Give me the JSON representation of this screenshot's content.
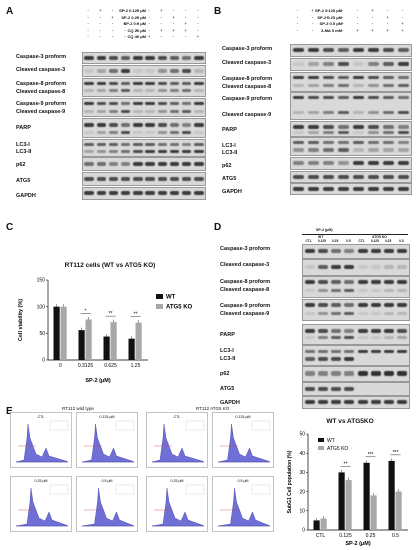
{
  "panels": {
    "A": "A",
    "B": "B",
    "C": "C",
    "D": "D",
    "E": "E"
  },
  "panelA": {
    "conditions": [
      {
        "label": "SP-2 0.125 μM",
        "signs": [
          "-",
          "+",
          "-",
          "-",
          "-",
          "-",
          "+",
          "-",
          "-",
          "-"
        ]
      },
      {
        "label": "SP-2 0.25 μM",
        "signs": [
          "-",
          "-",
          "+",
          "-",
          "-",
          "-",
          "-",
          "+",
          "-",
          "-"
        ]
      },
      {
        "label": "SP-2 0.5 μM",
        "signs": [
          "-",
          "-",
          "-",
          "+",
          "-",
          "-",
          "-",
          "-",
          "+",
          "-"
        ]
      },
      {
        "label": "CQ 20 μM",
        "signs": [
          "-",
          "-",
          "-",
          "-",
          "+",
          "-",
          "+",
          "+",
          "+",
          "-"
        ]
      },
      {
        "label": "CQ 40 μM",
        "signs": [
          "-",
          "-",
          "-",
          "-",
          "-",
          "+",
          "-",
          "-",
          "-",
          "+"
        ]
      }
    ],
    "blots": [
      {
        "labels": [
          "Caspase-3 proform"
        ]
      },
      {
        "labels": [
          "Cleaved caspase-3"
        ]
      },
      {
        "labels": [
          "Caspase-8 proform",
          "Cleaved caspase-8"
        ]
      },
      {
        "labels": [
          "Caspase-9 proform",
          "Cleaved caspase-9"
        ]
      },
      {
        "labels": [
          "PARP"
        ]
      },
      {
        "labels": [
          "LC3-I",
          "LC3-II"
        ]
      },
      {
        "labels": [
          "p62"
        ]
      },
      {
        "labels": [
          "ATG5"
        ]
      },
      {
        "labels": [
          "GAPDH"
        ]
      }
    ]
  },
  "panelB": {
    "conditions": [
      {
        "label": "SP-2 0.125 μM",
        "signs": [
          "-",
          "+",
          "-",
          "-",
          "-",
          "+",
          "-",
          "-"
        ]
      },
      {
        "label": "SP-2 0.25 μM",
        "signs": [
          "-",
          "-",
          "+",
          "-",
          "-",
          "-",
          "+",
          "-"
        ]
      },
      {
        "label": "SP-2 0.5 μM",
        "signs": [
          "-",
          "-",
          "-",
          "+",
          "-",
          "-",
          "-",
          "+"
        ]
      },
      {
        "label": "3-MA 5 mM",
        "signs": [
          "-",
          "-",
          "-",
          "-",
          "+",
          "+",
          "+",
          "+"
        ]
      }
    ],
    "blots": [
      {
        "labels": [
          "Caspase-3 proform"
        ]
      },
      {
        "labels": [
          "Cleaved caspase-3"
        ]
      },
      {
        "labels": [
          "Caspase-8 proform",
          "Cleaved caspase-8"
        ]
      },
      {
        "labels": [
          "Caspase-9 proform",
          "",
          "Cleaved caspase-9"
        ]
      },
      {
        "labels": [
          "PARP"
        ]
      },
      {
        "labels": [
          "LC3-I",
          "LC3-II"
        ]
      },
      {
        "labels": [
          "p62"
        ]
      },
      {
        "labels": [
          "ATG5"
        ]
      },
      {
        "labels": [
          "GAPDH"
        ]
      }
    ]
  },
  "panelC": {
    "title": "RT112 cells (WT vs ATG5 KO)",
    "ylabel": "Cell viability (%)",
    "xlabel": "SP-2 (μM)",
    "legend": [
      "WT",
      "ATG5 KO"
    ],
    "stars": [
      "*",
      "**",
      "**"
    ]
  },
  "panelD": {
    "header": "SP-2 (μM)",
    "group_wt": "WT",
    "group_ko": "ATG5 KO",
    "lanes": [
      "CTL",
      "0.125",
      "0.25",
      "0.5",
      "CTL",
      "0.125",
      "0.25",
      "0.5"
    ],
    "blots": [
      {
        "labels": [
          "Caspase-3 proform"
        ]
      },
      {
        "labels": [
          "Cleaved caspase-3"
        ]
      },
      {
        "labels": [
          "Caspase-8 proform",
          "Cleaved caspase-8"
        ]
      },
      {
        "labels": [
          "Caspase-9 proform",
          "Cleaved caspase-9"
        ]
      },
      {
        "labels": [
          "PARP"
        ]
      },
      {
        "labels": [
          "LC3-I",
          "LC3-II"
        ]
      },
      {
        "labels": [
          "p62"
        ]
      },
      {
        "labels": [
          "ATG5"
        ]
      },
      {
        "labels": [
          "GAPDH"
        ]
      }
    ]
  },
  "panelE": {
    "title_wt": "RT112 wild type",
    "title_ko": "RT112 ATG5 KO",
    "histograms": [
      {
        "label": "CTL"
      },
      {
        "label": "0.125 μM"
      },
      {
        "label": "0.25 μM"
      },
      {
        "label": "0.5 μM"
      },
      {
        "label": "CTL"
      },
      {
        "label": "0.125 μM"
      },
      {
        "label": "0.25 μM"
      },
      {
        "label": "0.5 μM"
      }
    ],
    "chart_title": "WT vs ATG5KO",
    "ylabel": "SubG1 Cell population (%)",
    "xlabel": "SP-2 (μM)",
    "legend": [
      "WT",
      "ATG5 KO"
    ],
    "stars": [
      "**",
      "***",
      "***"
    ]
  },
  "chart_data": [
    {
      "type": "bar",
      "title": "RT112 cells (WT vs ATG5 KO)",
      "xlabel": "SP-2 (μM)",
      "ylabel": "Cell viability (%)",
      "categories": [
        "0",
        "0.3125",
        "0.625",
        "1.25"
      ],
      "series": [
        {
          "name": "WT",
          "values": [
            100,
            56,
            44,
            40
          ],
          "color": "#111111"
        },
        {
          "name": "ATG5 KO",
          "values": [
            100,
            76,
            71,
            70
          ],
          "color": "#a8a8a8"
        }
      ],
      "ylim": [
        0,
        150
      ],
      "yticks": [
        0,
        50,
        100,
        150
      ]
    },
    {
      "type": "bar",
      "title": "WT vs ATG5KO",
      "xlabel": "SP-2 (μM)",
      "ylabel": "SubG1 Cell population (%)",
      "categories": [
        "CTL",
        "0.125",
        "0.25",
        "0.5"
      ],
      "series": [
        {
          "name": "WT",
          "values": [
            5,
            30,
            35,
            36
          ],
          "color": "#111111"
        },
        {
          "name": "ATG5 KO",
          "values": [
            6,
            26,
            18,
            20
          ],
          "color": "#a8a8a8"
        }
      ],
      "ylim": [
        0,
        50
      ],
      "yticks": [
        0,
        10,
        20,
        30,
        40,
        50
      ]
    }
  ]
}
